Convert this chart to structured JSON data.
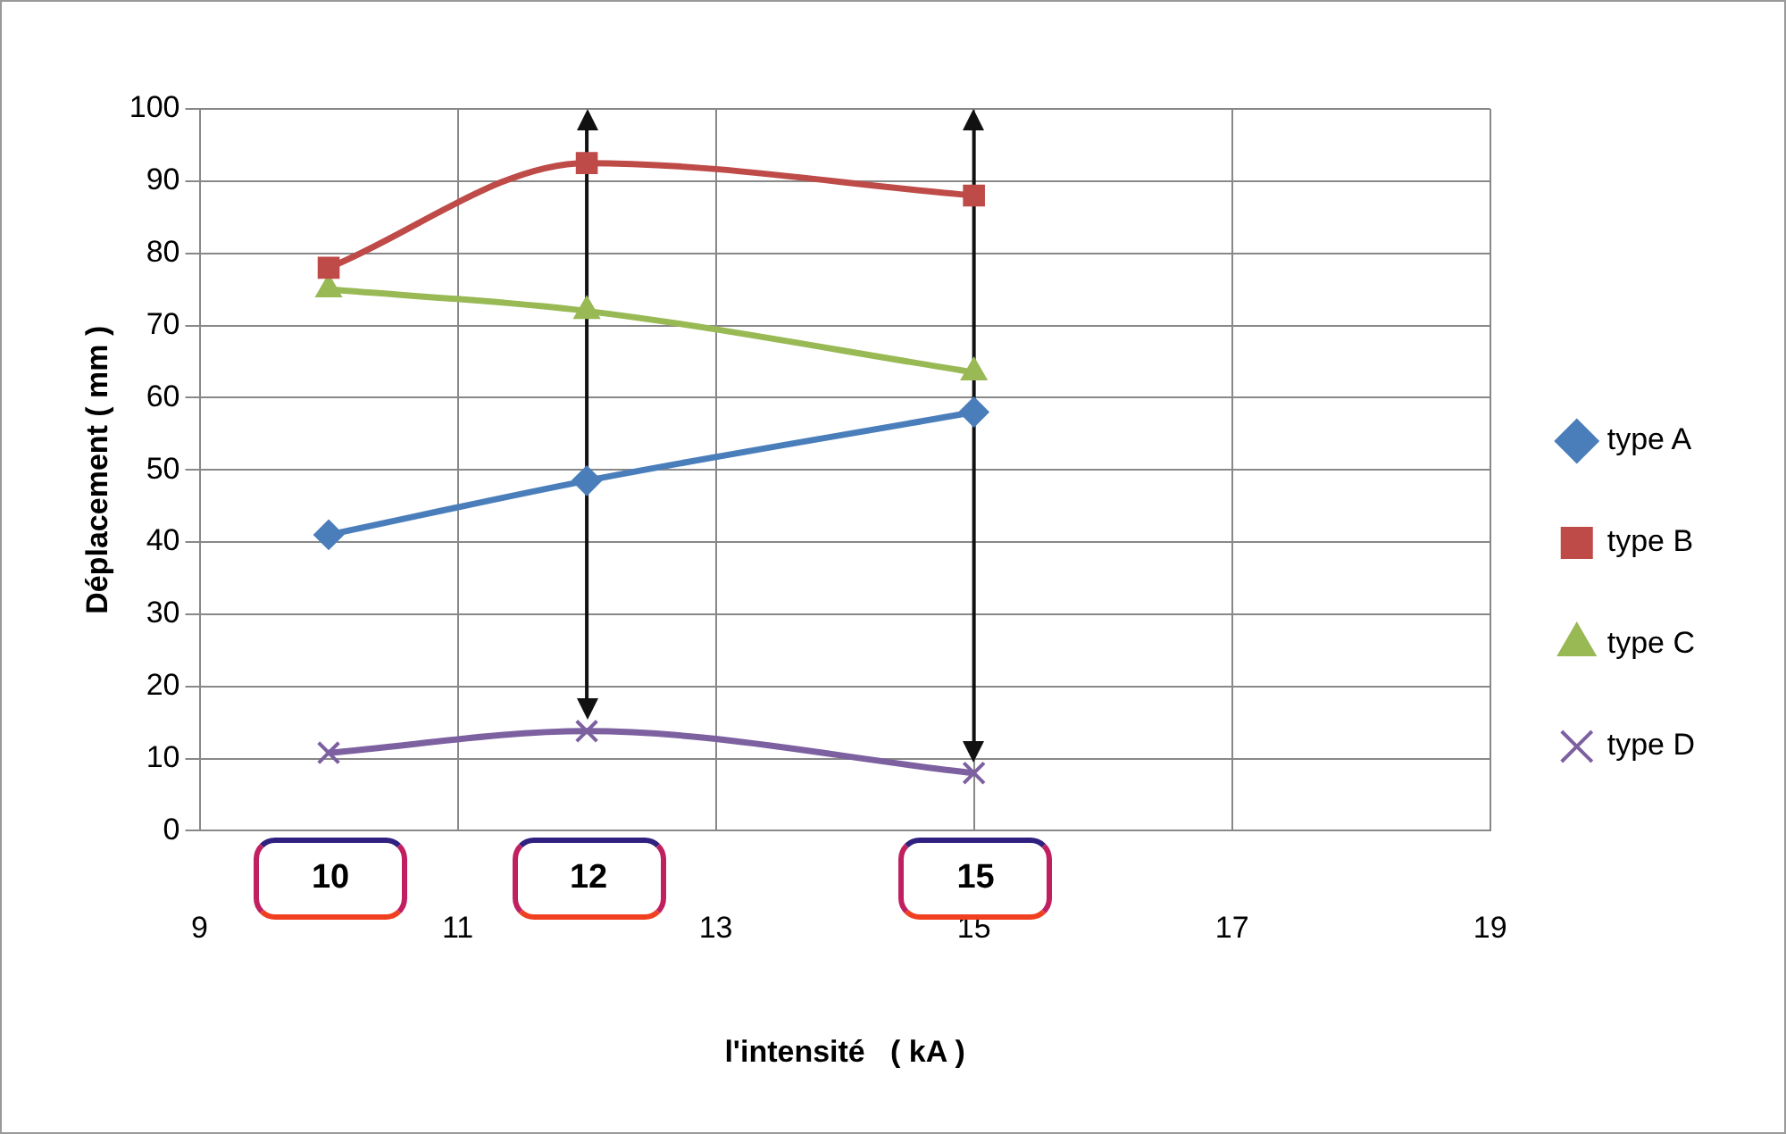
{
  "chart_data": {
    "type": "line",
    "xlabel": "l'intensité   ( kA )",
    "ylabel": "Déplacement ( mm )",
    "x": [
      10,
      12,
      15
    ],
    "series": [
      {
        "name": "type A",
        "color": "#4a7ebb",
        "marker": "diamond",
        "values": [
          41,
          48.5,
          58
        ]
      },
      {
        "name": "type B",
        "color": "#be4b48",
        "marker": "square",
        "values": [
          78,
          92.5,
          88
        ]
      },
      {
        "name": "type C",
        "color": "#98b954",
        "marker": "triangle",
        "values": [
          75,
          72,
          63.5
        ]
      },
      {
        "name": "type D",
        "color": "#7d60a0",
        "marker": "cross",
        "values": [
          10.8,
          13.8,
          8
        ]
      }
    ],
    "xlim": [
      9,
      19
    ],
    "xticks": [
      9,
      11,
      13,
      15,
      17,
      19
    ],
    "ylim": [
      0,
      100
    ],
    "yticks": [
      0,
      10,
      20,
      30,
      40,
      50,
      60,
      70,
      80,
      90,
      100
    ],
    "grid": true,
    "legend": "right",
    "line_style": "solid",
    "ref_lines": [
      {
        "axis": "x",
        "value": 12,
        "color": "#111111"
      },
      {
        "axis": "x",
        "value": 15,
        "color": "#111111"
      }
    ],
    "annotations": [
      "10",
      "12",
      "15"
    ]
  }
}
